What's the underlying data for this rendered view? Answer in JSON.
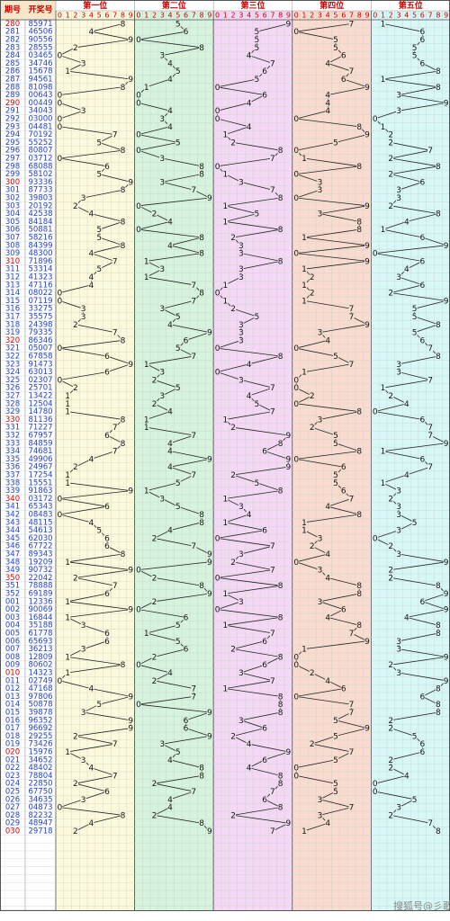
{
  "header": {
    "period": "期号",
    "number": "开奖号",
    "positions": [
      "第一位",
      "第二位",
      "第三位",
      "第四位",
      "第五位"
    ],
    "digit_labels": [
      "0",
      "1",
      "2",
      "3",
      "4",
      "5",
      "6",
      "7",
      "8",
      "9"
    ]
  },
  "rows": [
    [
      "280",
      "85971",
      [
        8,
        5,
        9,
        7,
        1
      ]
    ],
    [
      "281",
      "46506",
      [
        4,
        6,
        5,
        0,
        6
      ]
    ],
    [
      "282",
      "90556",
      [
        9,
        0,
        5,
        5,
        6
      ]
    ],
    [
      "283",
      "28555",
      [
        2,
        8,
        5,
        5,
        5
      ]
    ],
    [
      "284",
      "03465",
      [
        0,
        3,
        4,
        6,
        5
      ]
    ],
    [
      "285",
      "34746",
      [
        3,
        4,
        7,
        4,
        6
      ]
    ],
    [
      "286",
      "15678",
      [
        1,
        5,
        6,
        7,
        8
      ]
    ],
    [
      "287",
      "94561",
      [
        9,
        4,
        5,
        6,
        1
      ]
    ],
    [
      "288",
      "81098",
      [
        8,
        1,
        0,
        9,
        8
      ]
    ],
    [
      "289",
      "00643",
      [
        0,
        0,
        6,
        4,
        3
      ]
    ],
    [
      "290",
      "00449",
      [
        0,
        0,
        4,
        4,
        9
      ]
    ],
    [
      "291",
      "34043",
      [
        3,
        4,
        0,
        4,
        3
      ]
    ],
    [
      "292",
      "03000",
      [
        0,
        3,
        0,
        0,
        0
      ]
    ],
    [
      "293",
      "04481",
      [
        0,
        4,
        4,
        8,
        1
      ]
    ],
    [
      "294",
      "70192",
      [
        7,
        0,
        1,
        9,
        2
      ]
    ],
    [
      "295",
      "55252",
      [
        5,
        5,
        2,
        5,
        2
      ]
    ],
    [
      "296",
      "80807",
      [
        8,
        0,
        8,
        0,
        7
      ]
    ],
    [
      "297",
      "03712",
      [
        0,
        3,
        7,
        1,
        2
      ]
    ],
    [
      "298",
      "68088",
      [
        6,
        8,
        0,
        8,
        8
      ]
    ],
    [
      "299",
      "58102",
      [
        5,
        8,
        1,
        0,
        2
      ]
    ],
    [
      "300",
      "93336",
      [
        9,
        3,
        3,
        3,
        6
      ]
    ],
    [
      "301",
      "87733",
      [
        8,
        7,
        7,
        3,
        3
      ]
    ],
    [
      "302",
      "39803",
      [
        3,
        9,
        8,
        0,
        3
      ]
    ],
    [
      "303",
      "20192",
      [
        2,
        0,
        1,
        9,
        2
      ]
    ],
    [
      "304",
      "42538",
      [
        4,
        2,
        5,
        3,
        8
      ]
    ],
    [
      "305",
      "84184",
      [
        8,
        4,
        1,
        8,
        4
      ]
    ],
    [
      "306",
      "50881",
      [
        5,
        0,
        8,
        8,
        1
      ]
    ],
    [
      "307",
      "58216",
      [
        5,
        8,
        2,
        1,
        6
      ]
    ],
    [
      "308",
      "84399",
      [
        8,
        4,
        3,
        9,
        9
      ]
    ],
    [
      "309",
      "48300",
      [
        4,
        8,
        3,
        0,
        0
      ]
    ],
    [
      "310",
      "71896",
      [
        7,
        1,
        8,
        9,
        6
      ]
    ],
    [
      "311",
      "53314",
      [
        5,
        3,
        3,
        1,
        4
      ]
    ],
    [
      "312",
      "41323",
      [
        4,
        1,
        3,
        2,
        3
      ]
    ],
    [
      "313",
      "47116",
      [
        4,
        7,
        1,
        1,
        6
      ]
    ],
    [
      "314",
      "08022",
      [
        0,
        8,
        0,
        2,
        2
      ]
    ],
    [
      "315",
      "07119",
      [
        0,
        7,
        1,
        1,
        9
      ]
    ],
    [
      "316",
      "33275",
      [
        3,
        3,
        2,
        7,
        5
      ]
    ],
    [
      "317",
      "35575",
      [
        3,
        5,
        5,
        7,
        5
      ]
    ],
    [
      "318",
      "24398",
      [
        2,
        4,
        3,
        9,
        8
      ]
    ],
    [
      "319",
      "79335",
      [
        7,
        9,
        3,
        3,
        5
      ]
    ],
    [
      "320",
      "86346",
      [
        8,
        6,
        3,
        4,
        6
      ]
    ],
    [
      "321",
      "05007",
      [
        0,
        5,
        0,
        0,
        7
      ]
    ],
    [
      "322",
      "67858",
      [
        6,
        7,
        8,
        5,
        8
      ]
    ],
    [
      "323",
      "91473",
      [
        9,
        1,
        4,
        7,
        3
      ]
    ],
    [
      "324",
      "63013",
      [
        6,
        3,
        0,
        1,
        3
      ]
    ],
    [
      "325",
      "02307",
      [
        0,
        2,
        3,
        0,
        7
      ]
    ],
    [
      "326",
      "25701",
      [
        2,
        5,
        7,
        0,
        1
      ]
    ],
    [
      "327",
      "13422",
      [
        1,
        3,
        4,
        2,
        2
      ]
    ],
    [
      "328",
      "12504",
      [
        1,
        2,
        5,
        0,
        4
      ]
    ],
    [
      "329",
      "14780",
      [
        1,
        4,
        7,
        8,
        0
      ]
    ],
    [
      "330",
      "81136",
      [
        8,
        1,
        1,
        3,
        6
      ]
    ],
    [
      "331",
      "71227",
      [
        7,
        1,
        2,
        2,
        7
      ]
    ],
    [
      "332",
      "67957",
      [
        6,
        7,
        9,
        5,
        7
      ]
    ],
    [
      "333",
      "84859",
      [
        8,
        4,
        8,
        5,
        9
      ]
    ],
    [
      "334",
      "74681",
      [
        7,
        4,
        6,
        8,
        1
      ]
    ],
    [
      "335",
      "49906",
      [
        4,
        9,
        9,
        0,
        6
      ]
    ],
    [
      "336",
      "24967",
      [
        2,
        4,
        9,
        6,
        7
      ]
    ],
    [
      "337",
      "17254",
      [
        1,
        7,
        2,
        5,
        4
      ]
    ],
    [
      "338",
      "15551",
      [
        1,
        5,
        5,
        5,
        1
      ]
    ],
    [
      "339",
      "91863",
      [
        9,
        1,
        8,
        6,
        3
      ]
    ],
    [
      "340",
      "03172",
      [
        0,
        3,
        1,
        7,
        2
      ]
    ],
    [
      "341",
      "65343",
      [
        6,
        5,
        3,
        4,
        3
      ]
    ],
    [
      "342",
      "08483",
      [
        0,
        8,
        4,
        8,
        3
      ]
    ],
    [
      "343",
      "48115",
      [
        4,
        8,
        1,
        1,
        5
      ]
    ],
    [
      "344",
      "54613",
      [
        5,
        4,
        6,
        1,
        3
      ]
    ],
    [
      "345",
      "62030",
      [
        6,
        2,
        0,
        3,
        0
      ]
    ],
    [
      "346",
      "67722",
      [
        6,
        7,
        7,
        2,
        2
      ]
    ],
    [
      "347",
      "89343",
      [
        8,
        9,
        3,
        4,
        3
      ]
    ],
    [
      "348",
      "19209",
      [
        1,
        9,
        2,
        0,
        9
      ]
    ],
    [
      "349",
      "90732",
      [
        9,
        0,
        7,
        3,
        2
      ]
    ],
    [
      "350",
      "22042",
      [
        2,
        2,
        0,
        4,
        2
      ]
    ],
    [
      "351",
      "78888",
      [
        7,
        8,
        8,
        8,
        8
      ]
    ],
    [
      "352",
      "69189",
      [
        6,
        9,
        1,
        8,
        9
      ]
    ],
    [
      "001",
      "12336",
      [
        1,
        2,
        3,
        3,
        6
      ]
    ],
    [
      "002",
      "90069",
      [
        9,
        0,
        0,
        6,
        9
      ]
    ],
    [
      "003",
      "16844",
      [
        1,
        6,
        8,
        4,
        4
      ]
    ],
    [
      "004",
      "35188",
      [
        3,
        5,
        1,
        8,
        8
      ]
    ],
    [
      "005",
      "61778",
      [
        6,
        1,
        7,
        7,
        8
      ]
    ],
    [
      "006",
      "65693",
      [
        6,
        5,
        6,
        9,
        3
      ]
    ],
    [
      "007",
      "36213",
      [
        3,
        6,
        2,
        1,
        3
      ]
    ],
    [
      "008",
      "12809",
      [
        1,
        2,
        8,
        0,
        9
      ]
    ],
    [
      "009",
      "80602",
      [
        8,
        0,
        6,
        0,
        2
      ]
    ],
    [
      "010",
      "14323",
      [
        1,
        4,
        3,
        2,
        3
      ]
    ],
    [
      "011",
      "02749",
      [
        0,
        2,
        7,
        4,
        9
      ]
    ],
    [
      "012",
      "47168",
      [
        4,
        7,
        1,
        6,
        8
      ]
    ],
    [
      "013",
      "97806",
      [
        9,
        7,
        8,
        0,
        6
      ]
    ],
    [
      "014",
      "50878",
      [
        5,
        0,
        8,
        7,
        8
      ]
    ],
    [
      "015",
      "39878",
      [
        3,
        9,
        8,
        7,
        8
      ]
    ],
    [
      "016",
      "96352",
      [
        9,
        6,
        3,
        5,
        2
      ]
    ],
    [
      "017",
      "96692",
      [
        9,
        6,
        6,
        9,
        2
      ]
    ],
    [
      "018",
      "29255",
      [
        2,
        9,
        2,
        5,
        5
      ]
    ],
    [
      "019",
      "73426",
      [
        7,
        3,
        4,
        2,
        6
      ]
    ],
    [
      "020",
      "15976",
      [
        1,
        5,
        9,
        7,
        6
      ]
    ],
    [
      "021",
      "34652",
      [
        3,
        4,
        6,
        5,
        2
      ]
    ],
    [
      "022",
      "48402",
      [
        4,
        8,
        4,
        0,
        2
      ]
    ],
    [
      "023",
      "78804",
      [
        7,
        8,
        8,
        0,
        4
      ]
    ],
    [
      "024",
      "22850",
      [
        2,
        2,
        8,
        5,
        0
      ]
    ],
    [
      "025",
      "67750",
      [
        6,
        7,
        7,
        5,
        0
      ]
    ],
    [
      "026",
      "34635",
      [
        3,
        4,
        6,
        3,
        5
      ]
    ],
    [
      "027",
      "04873",
      [
        0,
        4,
        8,
        7,
        3
      ]
    ],
    [
      "028",
      "82232",
      [
        8,
        2,
        2,
        3,
        2
      ]
    ],
    [
      "029",
      "48947",
      [
        4,
        8,
        9,
        4,
        7
      ]
    ],
    [
      "030",
      "29718",
      [
        2,
        9,
        7,
        1,
        8
      ]
    ]
  ],
  "footer": "搜狐号@彡歌"
}
